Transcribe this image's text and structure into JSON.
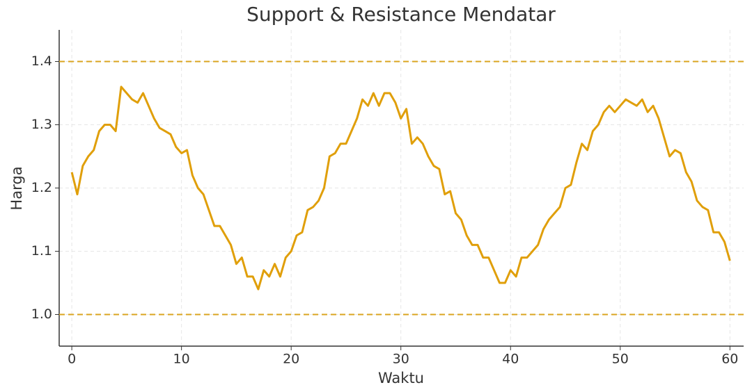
{
  "chart_data": {
    "type": "line",
    "title": "Support & Resistance Mendatar",
    "xlabel": "Waktu",
    "ylabel": "Harga",
    "x": [
      0,
      0.5,
      1,
      1.5,
      2,
      2.5,
      3,
      3.5,
      4,
      4.5,
      5,
      5.5,
      6,
      6.5,
      7,
      7.5,
      8,
      8.5,
      9,
      9.5,
      10,
      10.5,
      11,
      11.5,
      12,
      12.5,
      13,
      13.5,
      14,
      14.5,
      15,
      15.5,
      16,
      16.5,
      17,
      17.5,
      18,
      18.5,
      19,
      19.5,
      20,
      20.5,
      21,
      21.5,
      22,
      22.5,
      23,
      23.5,
      24,
      24.5,
      25,
      25.5,
      26,
      26.5,
      27,
      27.5,
      28,
      28.5,
      29,
      29.5,
      30,
      30.5,
      31,
      31.5,
      32,
      32.5,
      33,
      33.5,
      34,
      34.5,
      35,
      35.5,
      36,
      36.5,
      37,
      37.5,
      38,
      38.5,
      39,
      39.5,
      40,
      40.5,
      41,
      41.5,
      42,
      42.5,
      43,
      43.5,
      44,
      44.5,
      45,
      45.5,
      46,
      46.5,
      47,
      47.5,
      48,
      48.5,
      49,
      49.5,
      50,
      50.5,
      51,
      51.5,
      52,
      52.5,
      53,
      53.5,
      54,
      54.5,
      55,
      55.5,
      56,
      56.5,
      57,
      57.5,
      58,
      58.5,
      59,
      59.5,
      60
    ],
    "series": [
      {
        "color": "#e09f0a",
        "values": [
          1.225,
          1.19,
          1.235,
          1.25,
          1.26,
          1.29,
          1.3,
          1.3,
          1.29,
          1.36,
          1.35,
          1.34,
          1.335,
          1.35,
          1.33,
          1.31,
          1.295,
          1.29,
          1.285,
          1.265,
          1.255,
          1.26,
          1.22,
          1.2,
          1.19,
          1.165,
          1.14,
          1.14,
          1.125,
          1.11,
          1.08,
          1.09,
          1.06,
          1.06,
          1.04,
          1.07,
          1.06,
          1.08,
          1.06,
          1.09,
          1.1,
          1.125,
          1.13,
          1.165,
          1.17,
          1.18,
          1.2,
          1.25,
          1.255,
          1.27,
          1.27,
          1.29,
          1.31,
          1.34,
          1.33,
          1.35,
          1.33,
          1.35,
          1.35,
          1.335,
          1.31,
          1.325,
          1.27,
          1.28,
          1.27,
          1.25,
          1.235,
          1.23,
          1.19,
          1.195,
          1.16,
          1.15,
          1.125,
          1.11,
          1.11,
          1.09,
          1.09,
          1.07,
          1.05,
          1.05,
          1.07,
          1.06,
          1.09,
          1.09,
          1.1,
          1.11,
          1.135,
          1.15,
          1.16,
          1.17,
          1.2,
          1.205,
          1.24,
          1.27,
          1.26,
          1.29,
          1.3,
          1.32,
          1.33,
          1.32,
          1.33,
          1.34,
          1.335,
          1.33,
          1.34,
          1.32,
          1.33,
          1.31,
          1.28,
          1.25,
          1.26,
          1.255,
          1.225,
          1.21,
          1.18,
          1.17,
          1.165,
          1.13,
          1.13,
          1.115,
          1.085
        ]
      }
    ],
    "hlines": [
      1.4,
      1.0
    ],
    "hline_color": "#daa520",
    "xlim": [
      -1.15,
      61.25
    ],
    "ylim": [
      0.95,
      1.45
    ],
    "xticks": [
      0,
      10,
      20,
      30,
      40,
      50,
      60
    ],
    "yticks": [
      {
        "value": 1.0,
        "label": "1.0"
      },
      {
        "value": 1.1,
        "label": "1.1"
      },
      {
        "value": 1.2,
        "label": "1.2"
      },
      {
        "value": 1.3,
        "label": "1.3"
      },
      {
        "value": 1.4,
        "label": "1.4"
      }
    ],
    "grid": true
  }
}
